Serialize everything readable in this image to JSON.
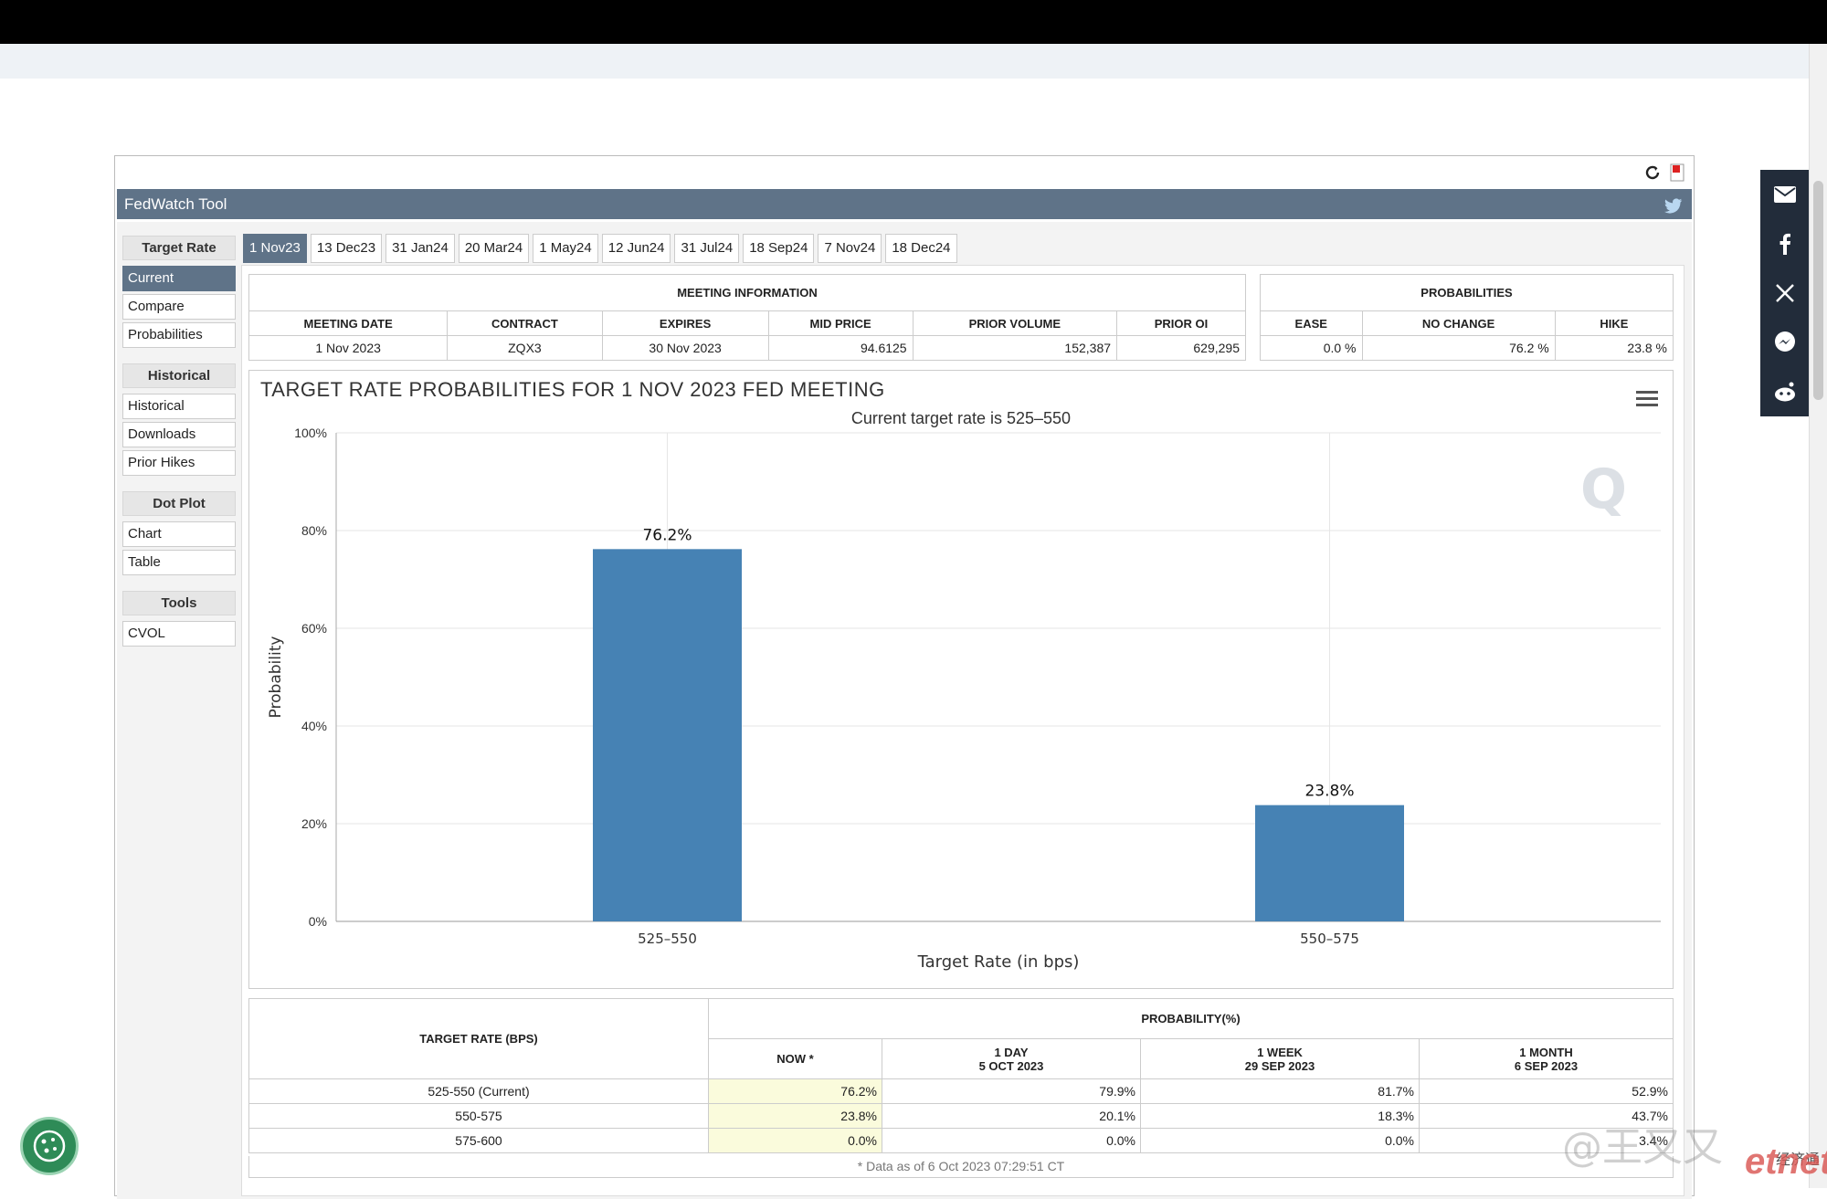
{
  "app": {
    "title": "FedWatch Tool"
  },
  "sidebar": {
    "groups": [
      {
        "heading": "Target Rate",
        "items": [
          "Current",
          "Compare",
          "Probabilities"
        ]
      },
      {
        "heading": "Historical",
        "items": [
          "Historical",
          "Downloads",
          "Prior Hikes"
        ]
      },
      {
        "heading": "Dot Plot",
        "items": [
          "Chart",
          "Table"
        ]
      },
      {
        "heading": "Tools",
        "items": [
          "CVOL"
        ]
      }
    ],
    "selected": "Current"
  },
  "tabs": [
    "1 Nov23",
    "13 Dec23",
    "31 Jan24",
    "20 Mar24",
    "1 May24",
    "12 Jun24",
    "31 Jul24",
    "18 Sep24",
    "7 Nov24",
    "18 Dec24"
  ],
  "meeting": {
    "section_title": "MEETING INFORMATION",
    "headers": [
      "MEETING DATE",
      "CONTRACT",
      "EXPIRES",
      "MID PRICE",
      "PRIOR VOLUME",
      "PRIOR OI"
    ],
    "values": [
      "1 Nov 2023",
      "ZQX3",
      "30 Nov 2023",
      "94.6125",
      "152,387",
      "629,295"
    ]
  },
  "probabilities": {
    "section_title": "PROBABILITIES",
    "headers": [
      "EASE",
      "NO CHANGE",
      "HIKE"
    ],
    "values": [
      "0.0 %",
      "76.2 %",
      "23.8 %"
    ]
  },
  "chart_data": {
    "type": "bar",
    "title": "TARGET RATE PROBABILITIES FOR 1 NOV 2023 FED MEETING",
    "subtitle": "Current target rate is 525–550",
    "categories": [
      "525–550",
      "550–575"
    ],
    "values": [
      76.2,
      23.8
    ],
    "value_labels": [
      "76.2%",
      "23.8%"
    ],
    "xlabel": "Target Rate (in bps)",
    "ylabel": "Probability",
    "ylim": [
      0,
      100
    ],
    "yticks": [
      "0%",
      "20%",
      "40%",
      "60%",
      "80%",
      "100%"
    ],
    "grid": true,
    "bar_color": "#4682b4",
    "watermark_letter": "Q"
  },
  "bottom_table": {
    "rate_header": "TARGET RATE (BPS)",
    "prob_header": "PROBABILITY(%)",
    "cols": [
      {
        "l1": "NOW *",
        "l2": ""
      },
      {
        "l1": "1 DAY",
        "l2": "5 OCT 2023"
      },
      {
        "l1": "1 WEEK",
        "l2": "29 SEP 2023"
      },
      {
        "l1": "1 MONTH",
        "l2": "6 SEP 2023"
      }
    ],
    "rows": [
      {
        "rate": "525-550 (Current)",
        "vals": [
          "76.2%",
          "79.9%",
          "81.7%",
          "52.9%"
        ]
      },
      {
        "rate": "550-575",
        "vals": [
          "23.8%",
          "20.1%",
          "18.3%",
          "43.7%"
        ]
      },
      {
        "rate": "575-600",
        "vals": [
          "0.0%",
          "0.0%",
          "0.0%",
          "3.4%"
        ]
      }
    ],
    "footnote": "* Data as of 6 Oct 2023 07:29:51 CT"
  },
  "share_icons": [
    "email-icon",
    "facebook-icon",
    "x-icon",
    "messenger-icon",
    "reddit-icon"
  ],
  "watermark": {
    "weibo": "@王又又",
    "brand": "etnet",
    "brand_cn": "经济通"
  }
}
